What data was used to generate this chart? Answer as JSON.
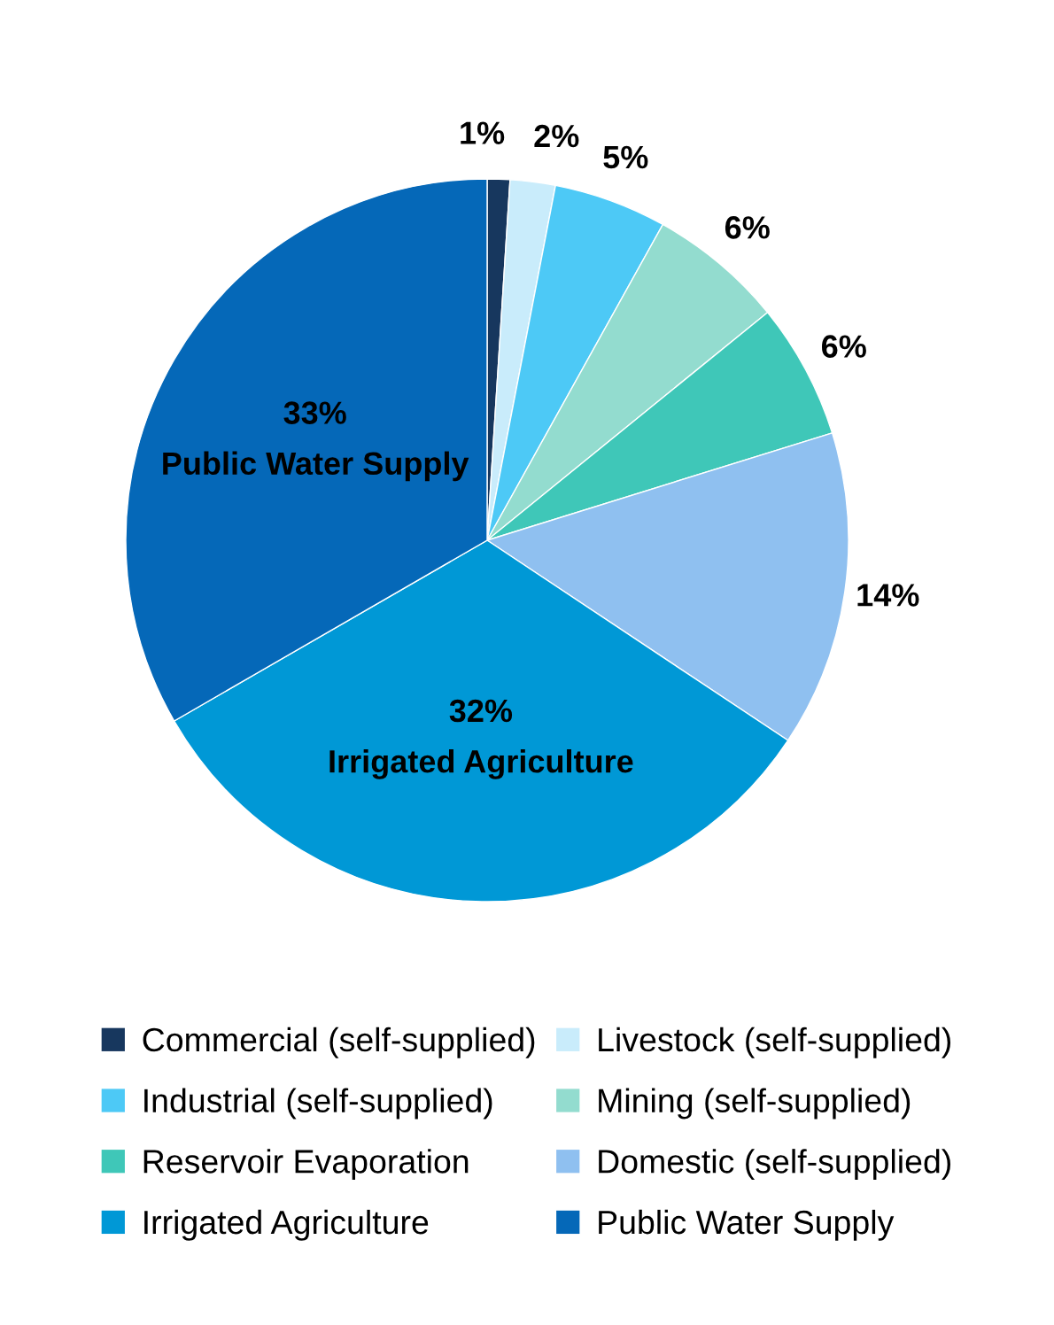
{
  "chart_data": {
    "type": "pie",
    "categories": [
      "Commercial (self-supplied)",
      "Livestock (self-supplied)",
      "Industrial (self-supplied)",
      "Mining (self-supplied)",
      "Reservoir Evaporation",
      "Domestic (self-supplied)",
      "Irrigated Agriculture",
      "Public Water Supply"
    ],
    "values": [
      1,
      2,
      5,
      6,
      6,
      14,
      32,
      33
    ],
    "colors": [
      "#17375e",
      "#c9ecfb",
      "#4dc9f6",
      "#93dccf",
      "#3fc7b8",
      "#8fc0f0",
      "#0098d6",
      "#0568b8"
    ],
    "value_labels": [
      "1%",
      "2%",
      "5%",
      "6%",
      "6%",
      "14%",
      "32%\nIrrigated Agriculture",
      "33%\nPublic Water Supply"
    ],
    "legend": "bottom"
  }
}
